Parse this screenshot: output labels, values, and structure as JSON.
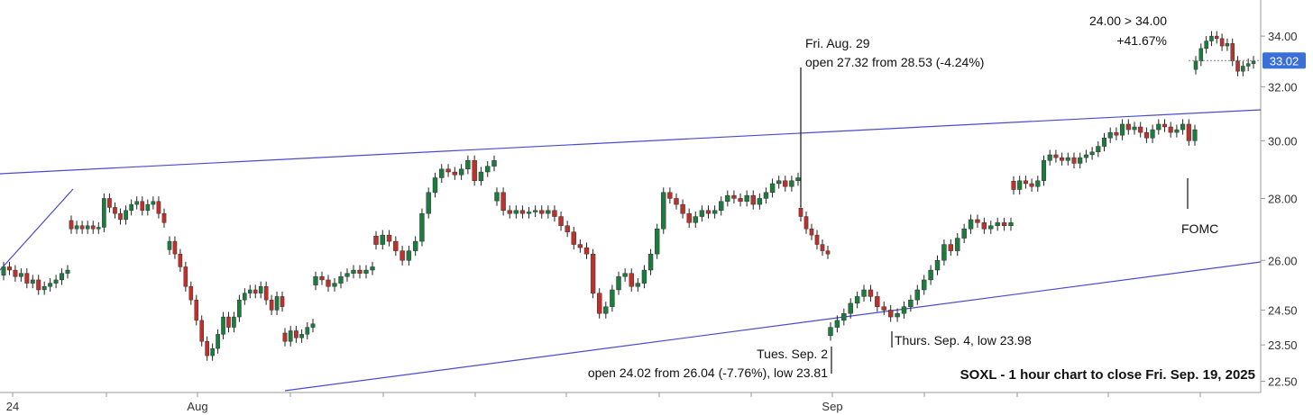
{
  "chart_data": {
    "type": "candlestick",
    "title": "SOXL - 1 hour chart to close Fri. Sep. 19, 2025",
    "ylim": [
      22.2,
      35.5
    ],
    "y_scale": "log",
    "y_ticks": [
      "34.00",
      "32.00",
      "30.00",
      "28.00",
      "26.00",
      "24.50",
      "23.50",
      "22.50"
    ],
    "x_ticks": [
      "24",
      "Aug",
      "Sep"
    ],
    "last_price": "33.02",
    "colors": {
      "up": "#1f7a3f",
      "down": "#b8332e",
      "trendline": "#4a4acf",
      "price_tag": "#3a6fd8"
    },
    "annotations": {
      "aug29": {
        "line1": "Fri. Aug. 29",
        "line2": "open 27.32 from 28.53 (-4.24%)"
      },
      "sep2": {
        "line1": "Tues. Sep. 2",
        "line2": "open 24.02 from 26.04 (-7.76%), low 23.81"
      },
      "sep4": {
        "line1": "Thurs. Sep. 4, low 23.98"
      },
      "fomc": {
        "line1": "FOMC"
      },
      "gain": {
        "line1": "24.00 > 34.00",
        "line2": "+41.67%"
      }
    },
    "candles_segments": [
      [
        25.8,
        25.7,
        25.5,
        25.6,
        25.3,
        25.4,
        25.1,
        25.2,
        25.3,
        25.4,
        25.6,
        25.7
      ],
      [
        27.0,
        27.1,
        27.0,
        27.1,
        27.0,
        27.05,
        28.0,
        27.7,
        27.5,
        27.3,
        27.6,
        27.8,
        27.9,
        27.6,
        27.8,
        27.9,
        27.5,
        27.2
      ],
      [
        26.6,
        26.2,
        25.8,
        25.2,
        24.8,
        24.2,
        23.6,
        23.2,
        23.4,
        23.8,
        24.3,
        24.0,
        24.3,
        24.8,
        25.0,
        25.1,
        25.0,
        25.2,
        24.8,
        24.5,
        24.9,
        24.6
      ],
      [
        23.6,
        23.9,
        23.7,
        23.8,
        24.0,
        24.1
      ],
      [
        25.5,
        25.4,
        25.2,
        25.3,
        25.5,
        25.6,
        25.7,
        25.6,
        25.7,
        25.8
      ],
      [
        26.5,
        26.8,
        26.6,
        26.3,
        26.0,
        26.3,
        26.6,
        27.5,
        28.2,
        28.7,
        29.0,
        28.9,
        28.8,
        29.0,
        29.3,
        28.6,
        28.9,
        29.1,
        29.3
      ],
      [
        28.2,
        27.6,
        27.5,
        27.6,
        27.5,
        27.55,
        27.6,
        27.5,
        27.6,
        27.4,
        27.1,
        26.9,
        26.5,
        26.4,
        26.2,
        25.0,
        24.4,
        24.6,
        25.1,
        25.5,
        25.6,
        25.2,
        25.3,
        25.7,
        26.2,
        27.0,
        28.2,
        28.0,
        27.8,
        27.5,
        27.2,
        27.4,
        27.6,
        27.5,
        27.6,
        27.9,
        28.1,
        28.0,
        27.9,
        28.1,
        27.8,
        28.0,
        28.2,
        28.5,
        28.6,
        28.4,
        28.6,
        28.7
      ],
      [
        27.4,
        27.0,
        26.8,
        26.5,
        26.3,
        26.2
      ],
      [
        24.0,
        24.2,
        24.4,
        24.7,
        24.9,
        25.1,
        24.9,
        24.6,
        24.5,
        24.3,
        24.4,
        24.6,
        24.8,
        25.1,
        25.4,
        25.7,
        26.0,
        26.5,
        26.3,
        26.7,
        27.0,
        27.3,
        27.2,
        27.0,
        27.1,
        27.2,
        27.1,
        27.2
      ],
      [
        28.3,
        28.6,
        28.5,
        28.4,
        28.6,
        29.3,
        29.5,
        29.4,
        29.3,
        29.4,
        29.2,
        29.4,
        29.5,
        29.6,
        29.8,
        30.1,
        30.3,
        30.2,
        30.6,
        30.4,
        30.5,
        30.3,
        30.1,
        30.4,
        30.6,
        30.5,
        30.3,
        30.4,
        30.6,
        30.0,
        30.4
      ],
      [
        33.0,
        33.5,
        33.8,
        34.0,
        33.9,
        33.6,
        33.7,
        33.0,
        32.6,
        32.8,
        32.9,
        33.0
      ]
    ]
  }
}
